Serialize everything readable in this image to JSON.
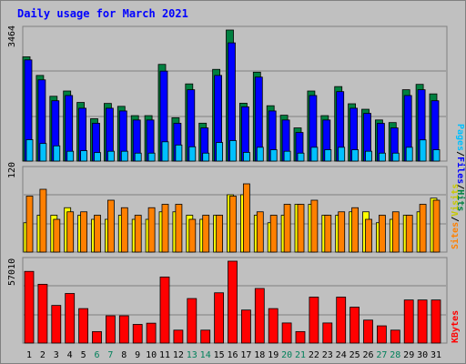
{
  "chart_data": {
    "type": "bar",
    "title": "Daily usage for March 2021",
    "categories": [
      "1",
      "2",
      "3",
      "4",
      "5",
      "6",
      "7",
      "8",
      "9",
      "10",
      "11",
      "12",
      "13",
      "14",
      "15",
      "16",
      "17",
      "18",
      "19",
      "20",
      "21",
      "22",
      "23",
      "24",
      "25",
      "26",
      "27",
      "28",
      "29",
      "30",
      "31"
    ],
    "weekend_days": [
      "6",
      "7",
      "13",
      "14",
      "20",
      "21",
      "27",
      "28"
    ],
    "panels": [
      {
        "name": "top",
        "ymax_label": "3464",
        "ylim": [
          0,
          3464
        ],
        "series": [
          {
            "name": "Hits",
            "color": "#008040",
            "values": [
              2757,
              2264,
              1713,
              1852,
              1550,
              1120,
              1524,
              1447,
              1201,
              1201,
              2556,
              1146,
              2040,
              1002,
              2424,
              3464,
              1530,
              2350,
              1463,
              1212,
              877,
              1852,
              1201,
              1969,
              1515,
              1370,
              1087,
              1018,
              1886,
              2028,
              1776
            ]
          },
          {
            "name": "Files",
            "color": "#0000ff",
            "values": [
              2675,
              2147,
              1595,
              1733,
              1397,
              1000,
              1397,
              1325,
              1086,
              1086,
              2378,
              1000,
              1886,
              877,
              2264,
              3125,
              1434,
              2220,
              1325,
              1086,
              756,
              1733,
              1086,
              1836,
              1397,
              1262,
              998,
              877,
              1733,
              1886,
              1595
            ]
          },
          {
            "name": "Pages",
            "color": "#00c0ff",
            "values": [
              566,
              465,
              402,
              260,
              275,
              225,
              260,
              260,
              210,
              210,
              510,
              425,
              378,
              210,
              491,
              542,
              230,
              365,
              300,
              260,
              210,
              365,
              300,
              365,
              300,
              260,
              210,
              210,
              365,
              560,
              300
            ]
          }
        ]
      },
      {
        "name": "middle",
        "ymax_label": "120",
        "ylim": [
          0,
          120
        ],
        "series": [
          {
            "name": "Visits",
            "color": "#ffff00",
            "values": [
              43,
              54,
              54,
              65,
              54,
              48,
              48,
              54,
              48,
              48,
              59,
              59,
              54,
              48,
              54,
              84,
              84,
              54,
              43,
              54,
              70,
              70,
              54,
              54,
              59,
              59,
              43,
              48,
              54,
              59,
              79
            ]
          },
          {
            "name": "Sites",
            "color": "#ff8000",
            "values": [
              82,
              92,
              48,
              59,
              59,
              54,
              76,
              65,
              54,
              65,
              70,
              70,
              48,
              54,
              54,
              82,
              100,
              59,
              54,
              70,
              70,
              76,
              54,
              59,
              65,
              48,
              54,
              59,
              54,
              70,
              76
            ]
          }
        ]
      },
      {
        "name": "bottom",
        "ymax_label": "57010",
        "ylim": [
          0,
          57010
        ],
        "series": [
          {
            "name": "KBytes",
            "color": "#ff0000",
            "values": [
              49894,
              40931,
              26207,
              34524,
              24000,
              8000,
              19000,
              19000,
              13000,
              13843,
              46000,
              9000,
              31000,
              9000,
              35000,
              57010,
              23000,
              38000,
              24000,
              14000,
              8000,
              32000,
              14000,
              32000,
              25000,
              16000,
              12000,
              9000,
              30000,
              30000,
              30000
            ]
          }
        ]
      }
    ],
    "right_labels": {
      "top": [
        "Pages",
        "/",
        "Files",
        "/",
        "Hits"
      ],
      "middle": [
        "Sites",
        "/",
        "Visits"
      ],
      "bottom": [
        "KBytes"
      ]
    },
    "grid": true
  },
  "colors": {
    "background": "#c0c0c0",
    "title": "#0000ff",
    "weekday_tick": "#000000",
    "weekend_tick": "#00805a",
    "gridline": "#808080"
  }
}
